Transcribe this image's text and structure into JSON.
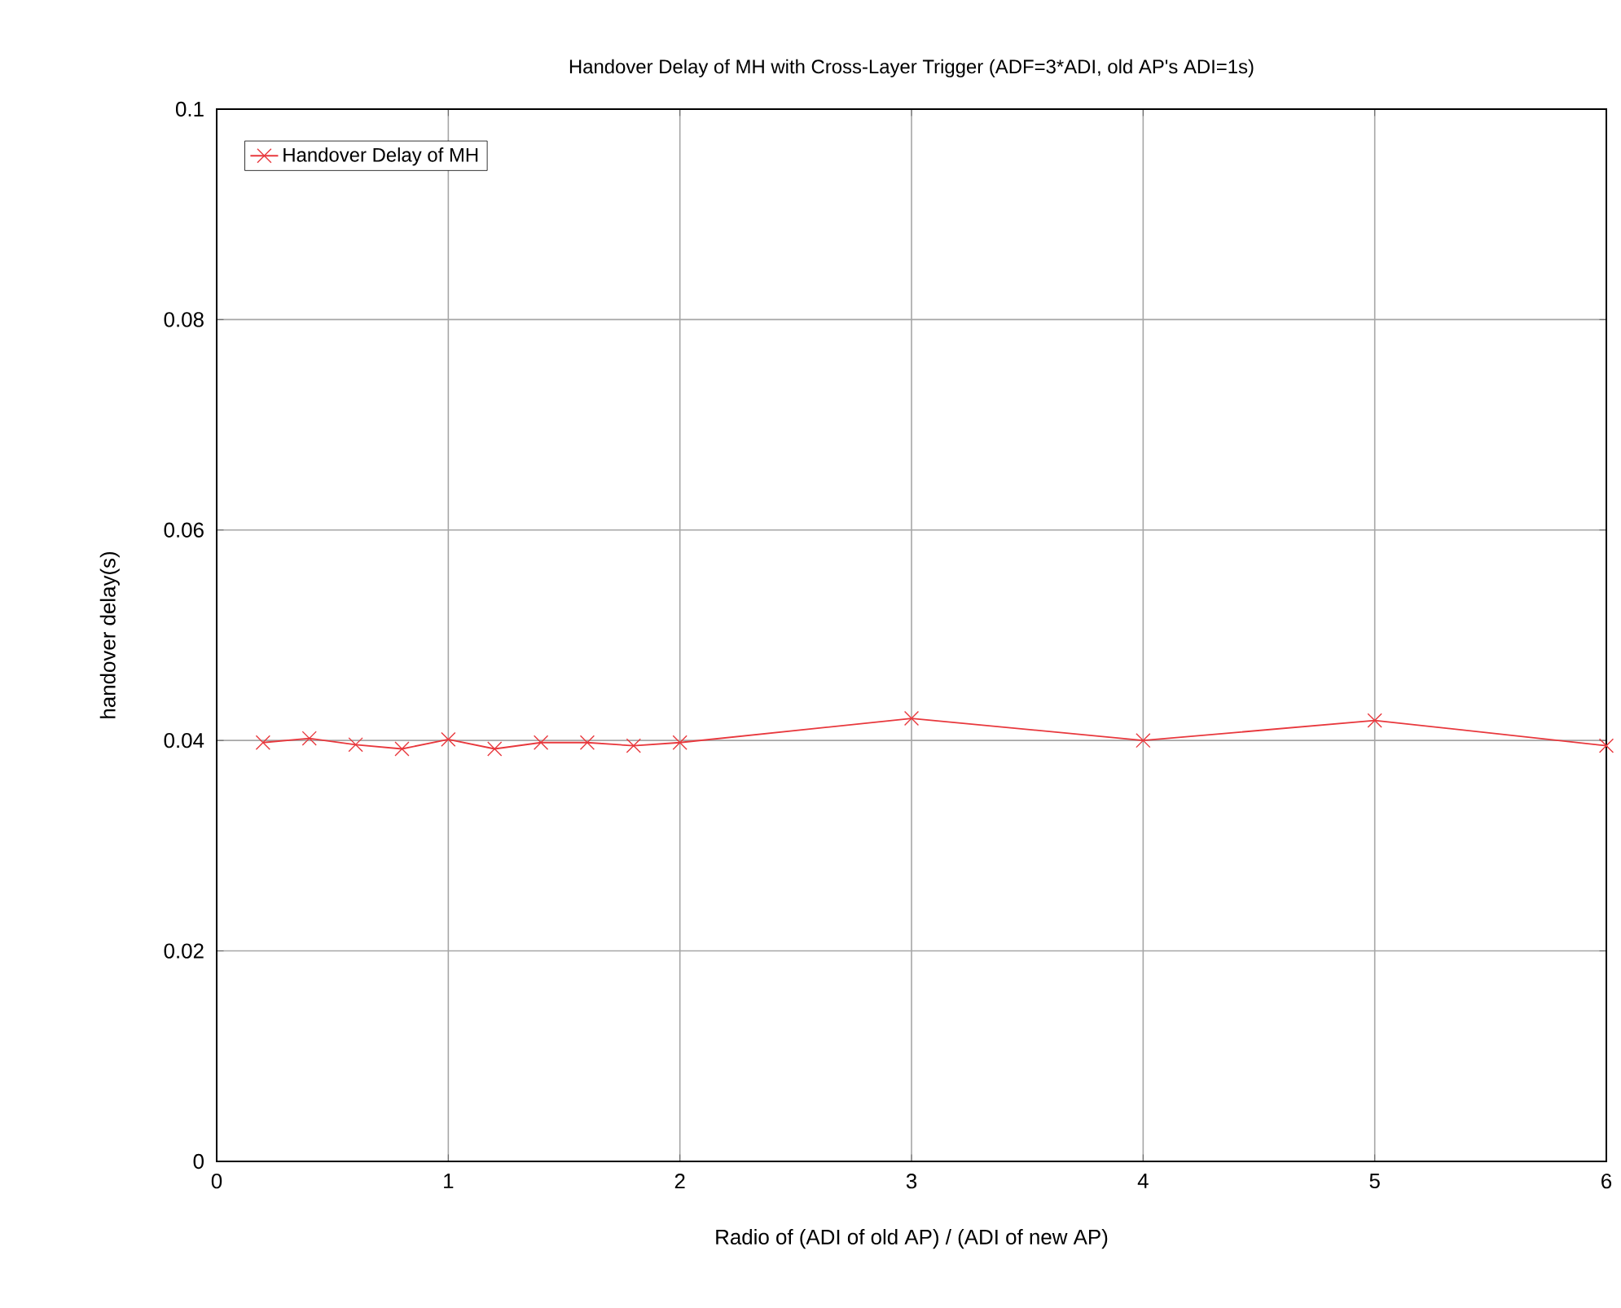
{
  "chart_data": {
    "type": "line",
    "title": "Handover Delay of MH with Cross-Layer Trigger (ADF=3*ADI, old AP's ADI=1s)",
    "xlabel": "Radio of (ADI of old AP) / (ADI of new AP)",
    "ylabel": "handover delay(s)",
    "x": [
      0.2,
      0.4,
      0.6,
      0.8,
      1.0,
      1.2,
      1.4,
      1.6,
      1.8,
      2.0,
      3,
      4,
      5,
      6
    ],
    "series": [
      {
        "name": "Handover Delay of MH",
        "color": "#e8383d",
        "values": [
          0.0398,
          0.0402,
          0.0396,
          0.0392,
          0.0401,
          0.0392,
          0.0398,
          0.0398,
          0.0395,
          0.0398,
          0.0421,
          0.04,
          0.0419,
          0.0395
        ]
      }
    ],
    "xlim": [
      0,
      6
    ],
    "ylim": [
      0,
      0.1
    ],
    "xticks": [
      0,
      1,
      2,
      3,
      4,
      5,
      6
    ],
    "yticks": [
      0,
      0.02,
      0.04,
      0.06,
      0.08,
      0.1
    ],
    "grid": true,
    "legend": "top left",
    "marker": "cross",
    "line_style": "solid"
  }
}
